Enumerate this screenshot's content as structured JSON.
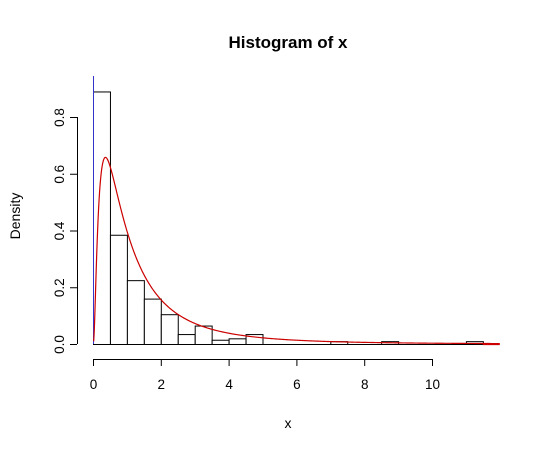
{
  "chart_data": {
    "type": "histogram",
    "title": "Histogram of x",
    "xlabel": "x",
    "ylabel": "Density",
    "xlim": [
      0,
      12
    ],
    "ylim": [
      0,
      0.92
    ],
    "x_ticks": [
      0,
      2,
      4,
      6,
      8,
      10
    ],
    "x_tick_labels": [
      "0",
      "2",
      "4",
      "6",
      "8",
      "10"
    ],
    "y_ticks": [
      0.0,
      0.2,
      0.4,
      0.6,
      0.8
    ],
    "y_tick_labels": [
      "0.0",
      "0.2",
      "0.4",
      "0.6",
      "0.8"
    ],
    "grid": false,
    "bin_width": 0.5,
    "bins": [
      {
        "x0": 0.0,
        "x1": 0.5,
        "density": 0.89
      },
      {
        "x0": 0.5,
        "x1": 1.0,
        "density": 0.385
      },
      {
        "x0": 1.0,
        "x1": 1.5,
        "density": 0.225
      },
      {
        "x0": 1.5,
        "x1": 2.0,
        "density": 0.16
      },
      {
        "x0": 2.0,
        "x1": 2.5,
        "density": 0.105
      },
      {
        "x0": 2.5,
        "x1": 3.0,
        "density": 0.035
      },
      {
        "x0": 3.0,
        "x1": 3.5,
        "density": 0.065
      },
      {
        "x0": 3.5,
        "x1": 4.0,
        "density": 0.015
      },
      {
        "x0": 4.0,
        "x1": 4.5,
        "density": 0.02
      },
      {
        "x0": 4.5,
        "x1": 5.0,
        "density": 0.035
      },
      {
        "x0": 5.0,
        "x1": 5.5,
        "density": 0.0
      },
      {
        "x0": 5.5,
        "x1": 6.0,
        "density": 0.0
      },
      {
        "x0": 6.0,
        "x1": 6.5,
        "density": 0.0
      },
      {
        "x0": 6.5,
        "x1": 7.0,
        "density": 0.0
      },
      {
        "x0": 7.0,
        "x1": 7.5,
        "density": 0.01
      },
      {
        "x0": 7.5,
        "x1": 8.0,
        "density": 0.0
      },
      {
        "x0": 8.0,
        "x1": 8.5,
        "density": 0.0
      },
      {
        "x0": 8.5,
        "x1": 9.0,
        "density": 0.01
      },
      {
        "x0": 9.0,
        "x1": 9.5,
        "density": 0.0
      },
      {
        "x0": 9.5,
        "x1": 10.0,
        "density": 0.0
      },
      {
        "x0": 10.0,
        "x1": 10.5,
        "density": 0.0
      },
      {
        "x0": 10.5,
        "x1": 11.0,
        "density": 0.0
      },
      {
        "x0": 11.0,
        "x1": 11.5,
        "density": 0.01
      }
    ],
    "density_curve": {
      "color": "#cc0000",
      "distribution": "lognormal",
      "meanlog": 0.0,
      "sdlog": 1.0,
      "x_range": [
        0.02,
        12
      ]
    },
    "vertical_line": {
      "x": 0.0,
      "color": "#3333cc"
    },
    "bar_stroke": "#000000",
    "bar_fill": "#ffffff"
  }
}
